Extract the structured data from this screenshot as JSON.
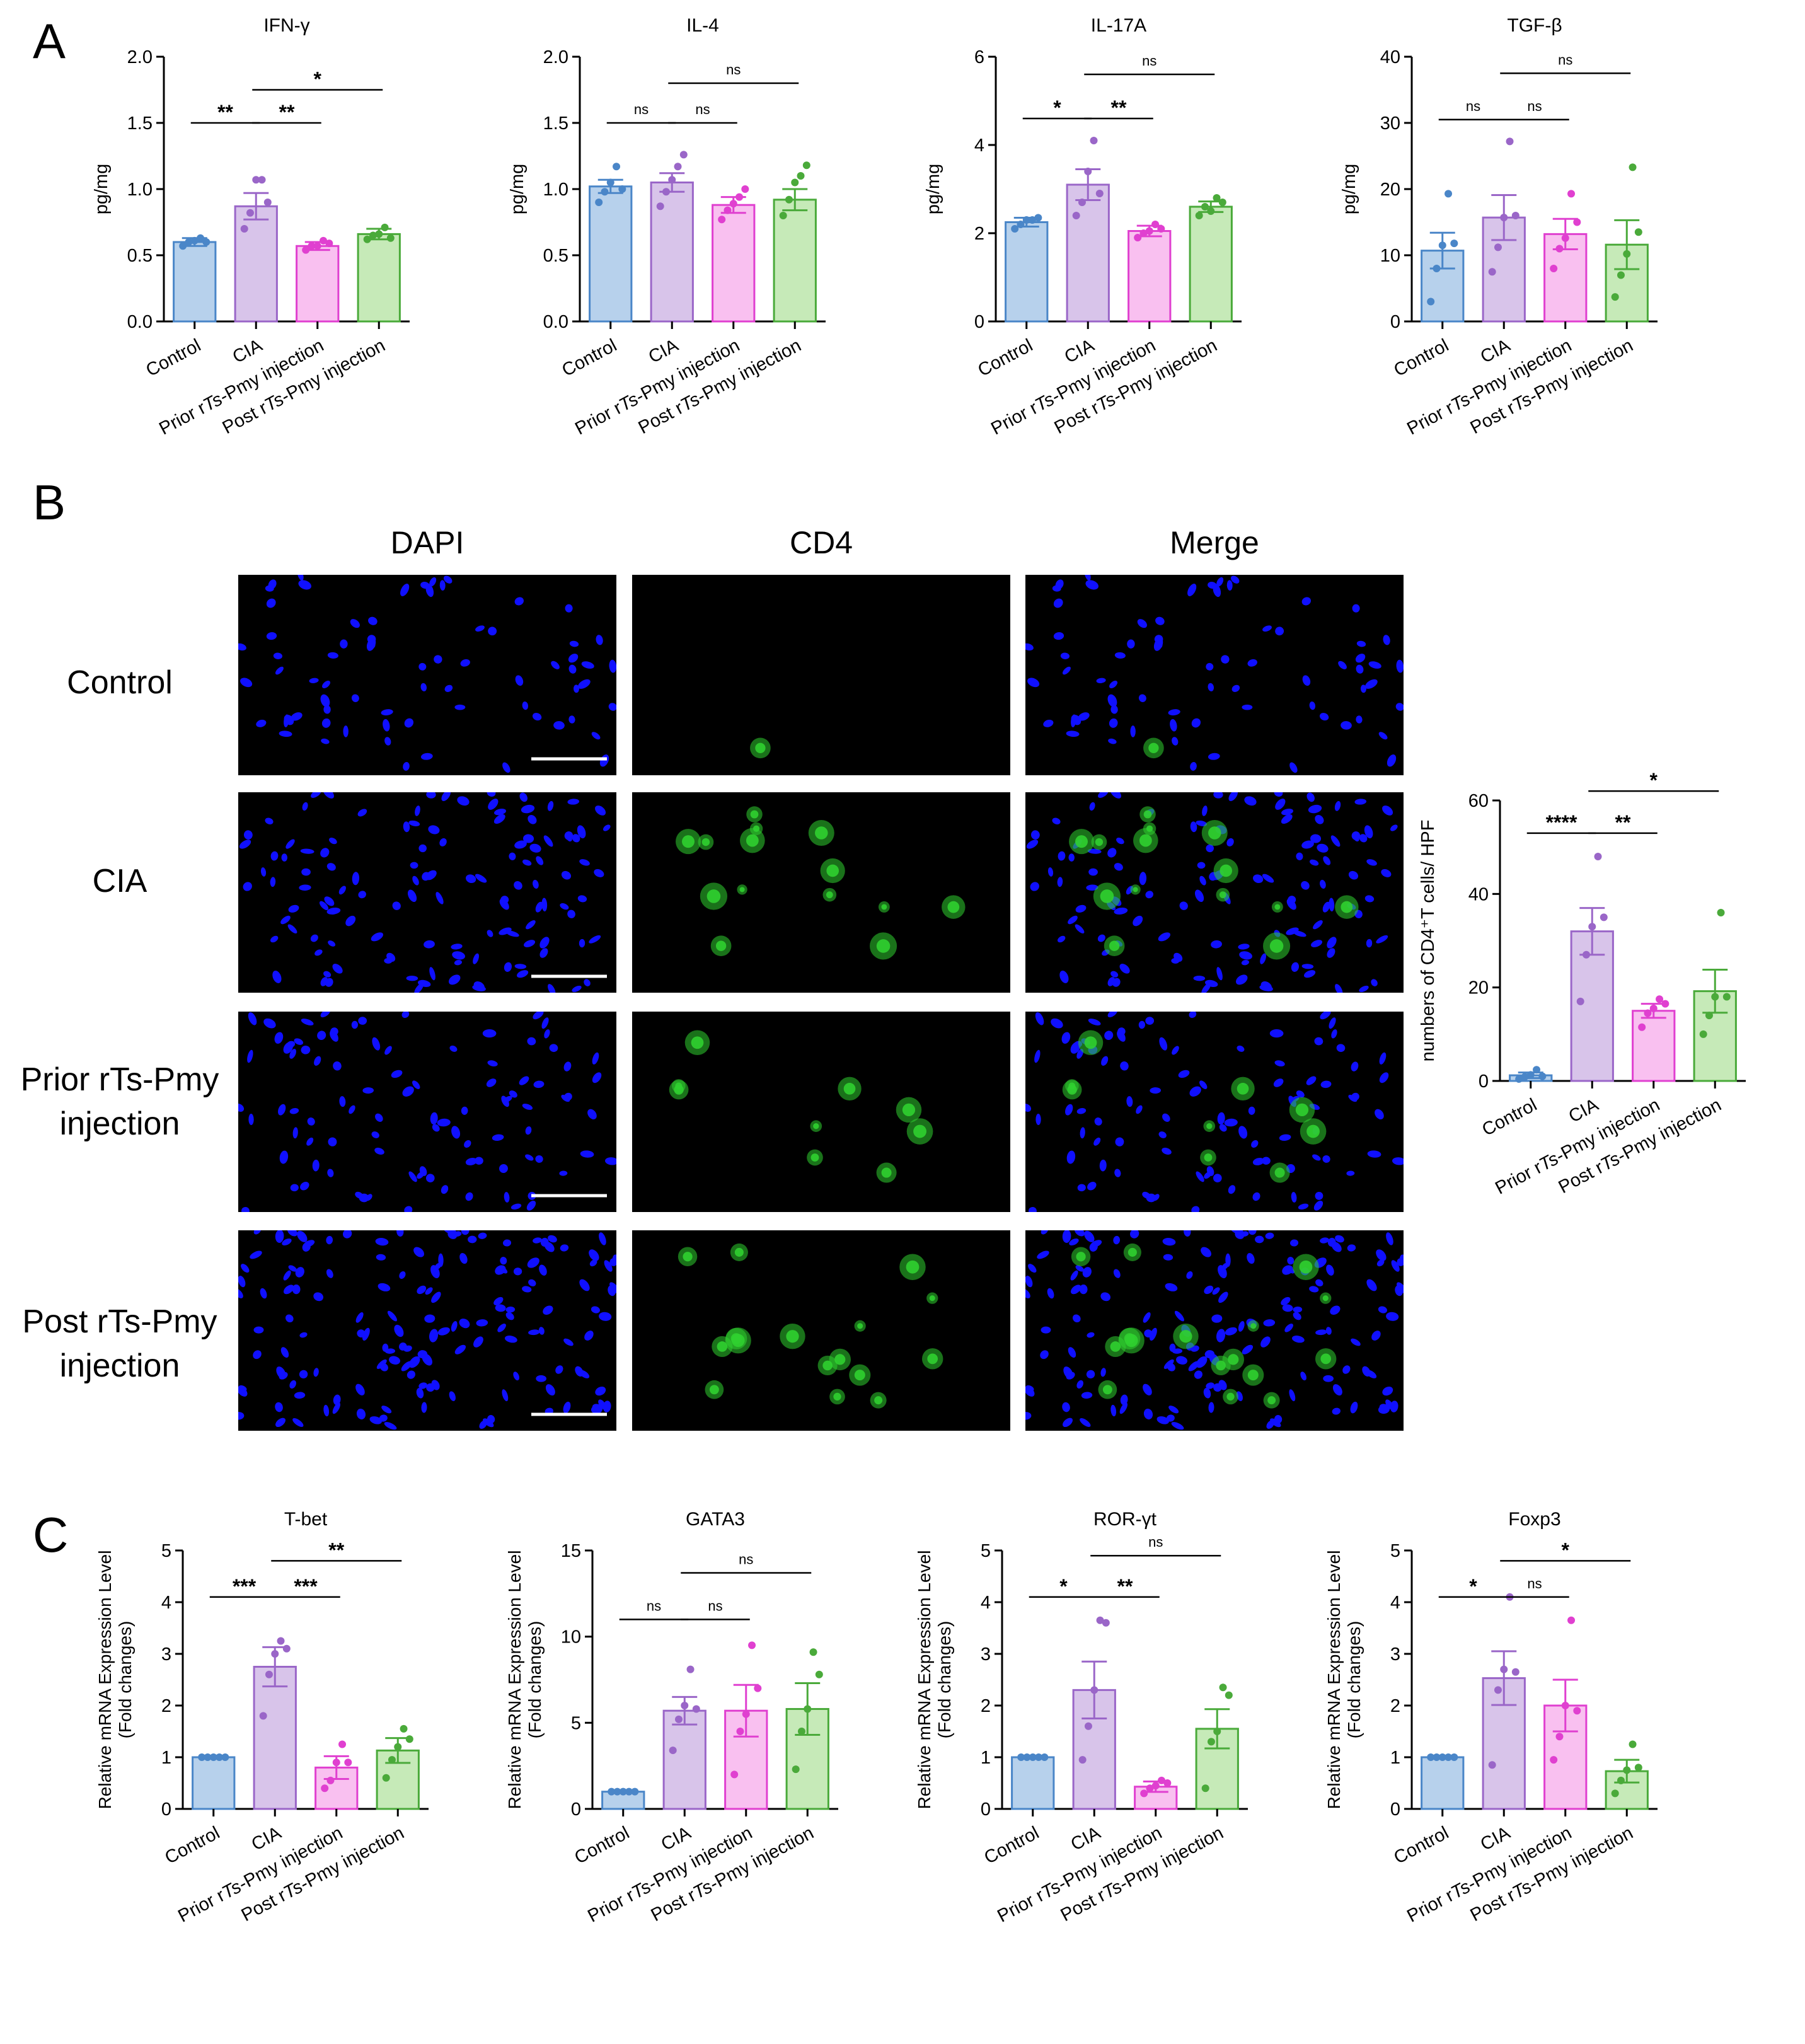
{
  "panels": {
    "A": "A",
    "B": "B",
    "C": "C"
  },
  "colors": {
    "Control": "#4a86c8",
    "CIA": "#9a66c8",
    "Prior": "#e040d0",
    "Post": "#4aaa3a",
    "Control_fill": "#b7d1ec",
    "CIA_fill": "#d8c4ea",
    "Prior_fill": "#f9c0f0",
    "Post_fill": "#c6eab8",
    "dapi": "#1010ff",
    "cd4": "#30d030"
  },
  "groups": [
    "Control",
    "CIA",
    "Prior rTs-Pmy injection",
    "Post rTs-Pmy injection"
  ],
  "microscopy": {
    "columns": [
      "DAPI",
      "CD4",
      "Merge"
    ],
    "rows": [
      {
        "lines": [
          "Control"
        ]
      },
      {
        "lines": [
          "CIA"
        ]
      },
      {
        "lines": [
          "Prior rTs-Pmy",
          "injection"
        ]
      },
      {
        "lines": [
          "Post rTs-Pmy",
          "injection"
        ]
      }
    ]
  },
  "chart_data": [
    {
      "id": "ifng",
      "panel": "A",
      "type": "bar",
      "title": "IFN-γ",
      "ylabel": "pg/mg",
      "xlabel": "",
      "categories": [
        "Control",
        "CIA",
        "Prior rTs-Pmy injection",
        "Post rTs-Pmy injection"
      ],
      "values": [
        0.6,
        0.87,
        0.57,
        0.66
      ],
      "errors": [
        0.03,
        0.1,
        0.03,
        0.04
      ],
      "points": [
        [
          0.57,
          0.6,
          0.61,
          0.63,
          0.6
        ],
        [
          0.7,
          0.82,
          1.07,
          1.07,
          0.9
        ],
        [
          0.54,
          0.57,
          0.57,
          0.61,
          0.59
        ],
        [
          0.62,
          0.65,
          0.66,
          0.71,
          0.63
        ]
      ],
      "ylim": [
        0,
        2.0
      ],
      "yticks": [
        0.0,
        0.5,
        1.0,
        1.5,
        2.0
      ],
      "ytick_labels": [
        "0.0",
        "0.5",
        "1.0",
        "1.5",
        "2.0"
      ],
      "comparisons": [
        {
          "from": 0,
          "to": 1,
          "label": "**",
          "y": 1.5
        },
        {
          "from": 1,
          "to": 2,
          "label": "**",
          "y": 1.5
        },
        {
          "from": 1,
          "to": 3,
          "label": "*",
          "y": 1.75
        }
      ]
    },
    {
      "id": "il4",
      "panel": "A",
      "type": "bar",
      "title": "IL-4",
      "ylabel": "pg/mg",
      "xlabel": "",
      "categories": [
        "Control",
        "CIA",
        "Prior rTs-Pmy injection",
        "Post rTs-Pmy injection"
      ],
      "values": [
        1.02,
        1.05,
        0.88,
        0.92
      ],
      "errors": [
        0.05,
        0.07,
        0.06,
        0.08
      ],
      "points": [
        [
          0.9,
          0.98,
          1.05,
          1.17,
          1.0
        ],
        [
          0.87,
          0.98,
          1.07,
          1.17,
          1.26
        ],
        [
          0.77,
          0.84,
          0.89,
          0.94,
          1.0
        ],
        [
          0.8,
          0.92,
          1.05,
          1.1,
          1.18
        ]
      ],
      "ylim": [
        0,
        2.0
      ],
      "yticks": [
        0.0,
        0.5,
        1.0,
        1.5,
        2.0
      ],
      "ytick_labels": [
        "0.0",
        "0.5",
        "1.0",
        "1.5",
        "2.0"
      ],
      "comparisons": [
        {
          "from": 0,
          "to": 1,
          "label": "ns",
          "y": 1.5
        },
        {
          "from": 1,
          "to": 2,
          "label": "ns",
          "y": 1.5
        },
        {
          "from": 1,
          "to": 3,
          "label": "ns",
          "y": 1.8
        }
      ]
    },
    {
      "id": "il17a",
      "panel": "A",
      "type": "bar",
      "title": "IL-17A",
      "ylabel": "pg/mg",
      "xlabel": "",
      "categories": [
        "Control",
        "CIA",
        "Prior rTs-Pmy injection",
        "Post rTs-Pmy injection"
      ],
      "values": [
        2.25,
        3.1,
        2.05,
        2.6
      ],
      "errors": [
        0.1,
        0.35,
        0.12,
        0.12
      ],
      "points": [
        [
          2.1,
          2.2,
          2.3,
          2.3,
          2.35
        ],
        [
          2.4,
          2.7,
          3.4,
          4.1,
          2.9
        ],
        [
          1.9,
          2.0,
          2.05,
          2.2,
          2.1
        ],
        [
          2.4,
          2.6,
          2.5,
          2.8,
          2.7
        ]
      ],
      "ylim": [
        0,
        6
      ],
      "yticks": [
        0,
        2,
        4,
        6
      ],
      "ytick_labels": [
        "0",
        "2",
        "4",
        "6"
      ],
      "comparisons": [
        {
          "from": 0,
          "to": 1,
          "label": "*",
          "y": 4.6
        },
        {
          "from": 1,
          "to": 2,
          "label": "**",
          "y": 4.6
        },
        {
          "from": 1,
          "to": 3,
          "label": "ns",
          "y": 5.6
        }
      ]
    },
    {
      "id": "tgfb",
      "panel": "A",
      "type": "bar",
      "title": "TGF-β",
      "ylabel": "pg/mg",
      "xlabel": "",
      "categories": [
        "Control",
        "CIA",
        "Prior rTs-Pmy injection",
        "Post rTs-Pmy injection"
      ],
      "values": [
        10.7,
        15.7,
        13.2,
        11.6
      ],
      "errors": [
        2.7,
        3.4,
        2.3,
        3.7
      ],
      "points": [
        [
          3.0,
          8.0,
          11.5,
          19.3,
          11.8
        ],
        [
          7.5,
          11.2,
          15.7,
          27.2,
          16.0
        ],
        [
          8.0,
          11.0,
          12.6,
          19.3,
          15.0
        ],
        [
          3.7,
          7.0,
          10.2,
          23.3,
          13.5
        ]
      ],
      "ylim": [
        0,
        40
      ],
      "yticks": [
        0,
        10,
        20,
        30,
        40
      ],
      "ytick_labels": [
        "0",
        "10",
        "20",
        "30",
        "40"
      ],
      "comparisons": [
        {
          "from": 0,
          "to": 1,
          "label": "ns",
          "y": 30.5
        },
        {
          "from": 1,
          "to": 2,
          "label": "ns",
          "y": 30.5
        },
        {
          "from": 1,
          "to": 3,
          "label": "ns",
          "y": 37.5
        }
      ]
    },
    {
      "id": "cd4count",
      "panel": "B",
      "type": "bar",
      "title": "",
      "ylabel": "numbers of CD4⁺T cells/ HPF",
      "xlabel": "",
      "categories": [
        "Control",
        "CIA",
        "Prior rTs-Pmy injection",
        "Post rTs-Pmy injection"
      ],
      "values": [
        1.2,
        32.0,
        15.0,
        19.2
      ],
      "errors": [
        0.6,
        5.0,
        1.5,
        4.6
      ],
      "points": [
        [
          0.4,
          0.9,
          1.3,
          2.4,
          1.0
        ],
        [
          17.0,
          27.0,
          33.0,
          48.0,
          35.0
        ],
        [
          11.5,
          14.5,
          15.5,
          17.5,
          16.5
        ],
        [
          10.0,
          14.0,
          18.0,
          36.0,
          18.0
        ]
      ],
      "ylim": [
        0,
        60
      ],
      "yticks": [
        0,
        20,
        40,
        60
      ],
      "ytick_labels": [
        "0",
        "20",
        "40",
        "60"
      ],
      "comparisons": [
        {
          "from": 0,
          "to": 1,
          "label": "****",
          "y": 53
        },
        {
          "from": 1,
          "to": 2,
          "label": "**",
          "y": 53
        },
        {
          "from": 1,
          "to": 3,
          "label": "*",
          "y": 62
        }
      ]
    },
    {
      "id": "tbet",
      "panel": "C",
      "type": "bar",
      "title": "T-bet",
      "ylabel": "Relative mRNA Expression Level (Fold changes)",
      "xlabel": "",
      "categories": [
        "Control",
        "CIA",
        "Prior rTs-Pmy injection",
        "Post rTs-Pmy injection"
      ],
      "values": [
        1.0,
        2.75,
        0.8,
        1.13
      ],
      "errors": [
        0.02,
        0.38,
        0.22,
        0.24
      ],
      "points": [
        [
          1.0,
          1.0,
          1.0,
          1.0,
          1.0
        ],
        [
          1.8,
          2.6,
          3.0,
          3.25,
          3.1
        ],
        [
          0.4,
          0.55,
          0.9,
          1.25,
          0.9
        ],
        [
          0.6,
          0.95,
          1.2,
          1.55,
          1.35
        ]
      ],
      "ylim": [
        0,
        5
      ],
      "yticks": [
        0,
        1,
        2,
        3,
        4,
        5
      ],
      "ytick_labels": [
        "0",
        "1",
        "2",
        "3",
        "4",
        "5"
      ],
      "comparisons": [
        {
          "from": 0,
          "to": 1,
          "label": "***",
          "y": 4.1
        },
        {
          "from": 1,
          "to": 2,
          "label": "***",
          "y": 4.1
        },
        {
          "from": 1,
          "to": 3,
          "label": "**",
          "y": 4.8
        }
      ]
    },
    {
      "id": "gata3",
      "panel": "C",
      "type": "bar",
      "title": "GATA3",
      "ylabel": "Relative mRNA Expression Level (Fold changes)",
      "xlabel": "",
      "categories": [
        "Control",
        "CIA",
        "Prior rTs-Pmy injection",
        "Post rTs-Pmy injection"
      ],
      "values": [
        1.0,
        5.7,
        5.7,
        5.8
      ],
      "errors": [
        0.02,
        0.8,
        1.5,
        1.5
      ],
      "points": [
        [
          1.0,
          1.0,
          1.0,
          1.0,
          1.0
        ],
        [
          3.4,
          5.2,
          6.0,
          8.1,
          5.8
        ],
        [
          2.0,
          4.5,
          5.5,
          9.5,
          7.0
        ],
        [
          2.3,
          4.5,
          5.8,
          9.1,
          7.8
        ]
      ],
      "ylim": [
        0,
        15
      ],
      "yticks": [
        0,
        5,
        10,
        15
      ],
      "ytick_labels": [
        "0",
        "5",
        "10",
        "15"
      ],
      "comparisons": [
        {
          "from": 0,
          "to": 1,
          "label": "ns",
          "y": 11.0
        },
        {
          "from": 1,
          "to": 2,
          "label": "ns",
          "y": 11.0
        },
        {
          "from": 1,
          "to": 3,
          "label": "ns",
          "y": 13.7
        }
      ]
    },
    {
      "id": "rorgt",
      "panel": "C",
      "type": "bar",
      "title": "ROR-γt",
      "ylabel": "Relative mRNA Expression Level (Fold changes)",
      "xlabel": "",
      "categories": [
        "Control",
        "CIA",
        "Prior rTs-Pmy injection",
        "Post rTs-Pmy injection"
      ],
      "values": [
        1.0,
        2.3,
        0.43,
        1.55
      ],
      "errors": [
        0.02,
        0.55,
        0.1,
        0.38
      ],
      "points": [
        [
          1.0,
          1.0,
          1.0,
          1.0,
          1.0
        ],
        [
          0.95,
          1.6,
          2.3,
          3.65,
          3.6
        ],
        [
          0.3,
          0.4,
          0.45,
          0.55,
          0.5
        ],
        [
          0.4,
          1.3,
          1.5,
          2.35,
          2.2
        ]
      ],
      "ylim": [
        0,
        5
      ],
      "yticks": [
        0,
        1,
        2,
        3,
        4,
        5
      ],
      "ytick_labels": [
        "0",
        "1",
        "2",
        "3",
        "4",
        "5"
      ],
      "comparisons": [
        {
          "from": 0,
          "to": 1,
          "label": "*",
          "y": 4.1
        },
        {
          "from": 1,
          "to": 2,
          "label": "**",
          "y": 4.1
        },
        {
          "from": 1,
          "to": 3,
          "label": "ns",
          "y": 4.9
        }
      ]
    },
    {
      "id": "foxp3",
      "panel": "C",
      "type": "bar",
      "title": "Foxp3",
      "ylabel": "Relative mRNA Expression Level (Fold changes)",
      "xlabel": "",
      "categories": [
        "Control",
        "CIA",
        "Prior rTs-Pmy injection",
        "Post rTs-Pmy injection"
      ],
      "values": [
        1.0,
        2.53,
        2.0,
        0.73
      ],
      "errors": [
        0.02,
        0.52,
        0.5,
        0.22
      ],
      "points": [
        [
          1.0,
          1.0,
          1.0,
          1.0,
          1.0
        ],
        [
          0.85,
          2.3,
          2.7,
          4.1,
          2.65
        ],
        [
          0.95,
          1.4,
          2.0,
          3.65,
          1.9
        ],
        [
          0.3,
          0.55,
          0.75,
          1.25,
          0.8
        ]
      ],
      "ylim": [
        0,
        5
      ],
      "yticks": [
        0,
        1,
        2,
        3,
        4,
        5
      ],
      "ytick_labels": [
        "0",
        "1",
        "2",
        "3",
        "4",
        "5"
      ],
      "comparisons": [
        {
          "from": 0,
          "to": 1,
          "label": "*",
          "y": 4.1
        },
        {
          "from": 1,
          "to": 2,
          "label": "ns",
          "y": 4.1
        },
        {
          "from": 1,
          "to": 3,
          "label": "*",
          "y": 4.8
        }
      ]
    }
  ]
}
